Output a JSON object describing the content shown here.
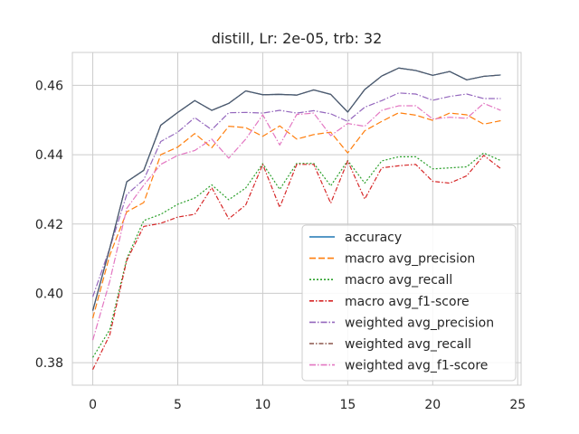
{
  "chart_data": {
    "type": "line",
    "title": "distill, Lr: 2e-05, trb: 32",
    "xlabel": "",
    "ylabel": "",
    "xlim": [
      -1.2,
      25.2
    ],
    "ylim": [
      0.3735,
      0.4695
    ],
    "xticks": [
      0,
      5,
      10,
      15,
      20,
      25
    ],
    "yticks": [
      0.38,
      0.4,
      0.42,
      0.44,
      0.46
    ],
    "ytick_labels": [
      "0.38",
      "0.40",
      "0.42",
      "0.44",
      "0.46"
    ],
    "grid": true,
    "legend_position": "lower right",
    "x": [
      0,
      1,
      2,
      3,
      4,
      5,
      6,
      7,
      8,
      9,
      10,
      11,
      12,
      13,
      14,
      15,
      16,
      17,
      18,
      19,
      20,
      21,
      22,
      23,
      24
    ],
    "series": [
      {
        "name": "accuracy",
        "color": "#1f77b4",
        "dash": "",
        "values": [
          0.395,
          0.413,
          0.4322,
          0.4355,
          0.4485,
          0.4522,
          0.4556,
          0.4528,
          0.4548,
          0.4584,
          0.4573,
          0.4574,
          0.4572,
          0.4587,
          0.4574,
          0.4523,
          0.4588,
          0.4627,
          0.465,
          0.4643,
          0.4629,
          0.464,
          0.4616,
          0.4626,
          0.463
        ]
      },
      {
        "name": "macro avg_precision",
        "color": "#ff7f0e",
        "dash": "7,3",
        "values": [
          0.3928,
          0.411,
          0.4235,
          0.4262,
          0.44,
          0.4422,
          0.4461,
          0.442,
          0.4482,
          0.4478,
          0.4453,
          0.4483,
          0.4445,
          0.4458,
          0.4465,
          0.4405,
          0.4469,
          0.4496,
          0.4521,
          0.4514,
          0.4499,
          0.452,
          0.4515,
          0.4488,
          0.4498
        ]
      },
      {
        "name": "macro avg_recall",
        "color": "#2ca02c",
        "dash": "2,2",
        "values": [
          0.3815,
          0.3895,
          0.41,
          0.421,
          0.4228,
          0.4257,
          0.4275,
          0.4313,
          0.427,
          0.4304,
          0.4374,
          0.43,
          0.4375,
          0.4375,
          0.431,
          0.4383,
          0.4318,
          0.4382,
          0.4394,
          0.4394,
          0.4359,
          0.4362,
          0.4365,
          0.4405,
          0.4383
        ]
      },
      {
        "name": "macro avg_f1-score",
        "color": "#d62728",
        "dash": "5,2,1.5,2",
        "values": [
          0.378,
          0.388,
          0.4095,
          0.4193,
          0.4202,
          0.422,
          0.4228,
          0.4305,
          0.4215,
          0.4255,
          0.4372,
          0.4248,
          0.4372,
          0.4372,
          0.426,
          0.4382,
          0.4272,
          0.4362,
          0.4368,
          0.4372,
          0.4323,
          0.4318,
          0.4339,
          0.4398,
          0.436
        ]
      },
      {
        "name": "weighted avg_precision",
        "color": "#9467bd",
        "dash": "7,2,1.5,2",
        "values": [
          0.399,
          0.413,
          0.4285,
          0.4328,
          0.4438,
          0.4465,
          0.4507,
          0.4472,
          0.4521,
          0.4522,
          0.452,
          0.4528,
          0.452,
          0.4527,
          0.4518,
          0.4496,
          0.4537,
          0.4556,
          0.4578,
          0.4575,
          0.4557,
          0.4568,
          0.4575,
          0.4562,
          0.4562
        ]
      },
      {
        "name": "weighted avg_recall",
        "color": "#8c564b",
        "dash": "5,2,1.5,2",
        "values": [
          0.395,
          0.413,
          0.4322,
          0.4355,
          0.4485,
          0.4522,
          0.4556,
          0.4528,
          0.4548,
          0.4584,
          0.4573,
          0.4574,
          0.4572,
          0.4587,
          0.4574,
          0.4523,
          0.4588,
          0.4627,
          0.465,
          0.4643,
          0.4629,
          0.464,
          0.4616,
          0.4626,
          0.463
        ]
      },
      {
        "name": "weighted avg_f1-score",
        "color": "#e377c2",
        "dash": "7,2,1.5,2",
        "values": [
          0.3865,
          0.4035,
          0.4245,
          0.4312,
          0.4372,
          0.4398,
          0.4412,
          0.4445,
          0.439,
          0.4445,
          0.4515,
          0.4428,
          0.4516,
          0.452,
          0.4455,
          0.449,
          0.4482,
          0.4528,
          0.4541,
          0.4541,
          0.4503,
          0.4508,
          0.4505,
          0.4548,
          0.4528
        ]
      }
    ]
  }
}
